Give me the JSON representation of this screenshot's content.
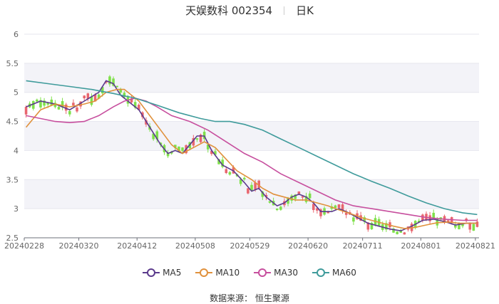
{
  "header": {
    "name": "天娱数科 002354",
    "period": "日K"
  },
  "source": "数据来源： 恒生聚源",
  "chart_data": {
    "type": "candlestick",
    "ylim": [
      2.5,
      6
    ],
    "y_ticks": [
      2.5,
      3,
      3.5,
      4,
      4.5,
      5,
      5.5,
      6
    ],
    "x_tick_labels": [
      "20240228",
      "20240320",
      "20240412",
      "20240508",
      "20240529",
      "20240620",
      "20240711",
      "20240801",
      "20240821"
    ],
    "x_tick_index": [
      0,
      15,
      31,
      47,
      62,
      78,
      93,
      109,
      124
    ],
    "n_days": 125,
    "up_color": "#e8666f",
    "down_color": "#7fe04a",
    "grid": true,
    "band_fill": "#f3f3f8",
    "legend_position": "bottom",
    "ma_series": [
      {
        "name": "MA5",
        "color": "#5b3a8c",
        "points": [
          [
            0,
            4.75
          ],
          [
            4,
            4.85
          ],
          [
            8,
            4.8
          ],
          [
            12,
            4.7
          ],
          [
            16,
            4.85
          ],
          [
            20,
            5.0
          ],
          [
            22,
            5.2
          ],
          [
            24,
            5.15
          ],
          [
            26,
            4.95
          ],
          [
            28,
            4.85
          ],
          [
            31,
            4.7
          ],
          [
            34,
            4.4
          ],
          [
            37,
            4.1
          ],
          [
            39,
            3.95
          ],
          [
            41,
            4.0
          ],
          [
            43,
            3.95
          ],
          [
            45,
            4.1
          ],
          [
            47,
            4.25
          ],
          [
            49,
            4.25
          ],
          [
            51,
            4.0
          ],
          [
            54,
            3.75
          ],
          [
            57,
            3.65
          ],
          [
            60,
            3.45
          ],
          [
            62,
            3.3
          ],
          [
            64,
            3.35
          ],
          [
            66,
            3.2
          ],
          [
            69,
            3.05
          ],
          [
            71,
            3.1
          ],
          [
            73,
            3.2
          ],
          [
            75,
            3.25
          ],
          [
            77,
            3.2
          ],
          [
            79,
            3.1
          ],
          [
            81,
            2.95
          ],
          [
            84,
            2.95
          ],
          [
            86,
            3.0
          ],
          [
            88,
            2.95
          ],
          [
            91,
            2.85
          ],
          [
            94,
            2.75
          ],
          [
            97,
            2.7
          ],
          [
            100,
            2.65
          ],
          [
            103,
            2.62
          ],
          [
            106,
            2.7
          ],
          [
            109,
            2.8
          ],
          [
            112,
            2.82
          ],
          [
            115,
            2.78
          ],
          [
            118,
            2.72
          ],
          [
            121,
            2.75
          ],
          [
            124,
            2.75
          ]
        ]
      },
      {
        "name": "MA10",
        "color": "#e0913c",
        "points": [
          [
            0,
            4.4
          ],
          [
            4,
            4.7
          ],
          [
            8,
            4.8
          ],
          [
            12,
            4.75
          ],
          [
            16,
            4.8
          ],
          [
            19,
            4.85
          ],
          [
            22,
            5.0
          ],
          [
            25,
            5.05
          ],
          [
            27,
            5.05
          ],
          [
            29,
            4.95
          ],
          [
            31,
            4.85
          ],
          [
            34,
            4.6
          ],
          [
            37,
            4.35
          ],
          [
            40,
            4.1
          ],
          [
            43,
            3.95
          ],
          [
            46,
            4.05
          ],
          [
            49,
            4.15
          ],
          [
            52,
            4.05
          ],
          [
            55,
            3.85
          ],
          [
            58,
            3.65
          ],
          [
            62,
            3.5
          ],
          [
            65,
            3.35
          ],
          [
            68,
            3.25
          ],
          [
            71,
            3.2
          ],
          [
            74,
            3.15
          ],
          [
            77,
            3.15
          ],
          [
            80,
            3.1
          ],
          [
            83,
            3.05
          ],
          [
            86,
            2.98
          ],
          [
            89,
            2.92
          ],
          [
            92,
            2.85
          ],
          [
            95,
            2.8
          ],
          [
            98,
            2.75
          ],
          [
            101,
            2.7
          ],
          [
            104,
            2.66
          ],
          [
            107,
            2.68
          ],
          [
            110,
            2.72
          ],
          [
            113,
            2.76
          ],
          [
            116,
            2.77
          ],
          [
            119,
            2.75
          ],
          [
            122,
            2.75
          ],
          [
            124,
            2.75
          ]
        ]
      },
      {
        "name": "MA30",
        "color": "#c74f9e",
        "points": [
          [
            0,
            4.6
          ],
          [
            4,
            4.55
          ],
          [
            8,
            4.5
          ],
          [
            12,
            4.48
          ],
          [
            16,
            4.5
          ],
          [
            20,
            4.6
          ],
          [
            24,
            4.75
          ],
          [
            27,
            4.85
          ],
          [
            30,
            4.9
          ],
          [
            33,
            4.85
          ],
          [
            36,
            4.75
          ],
          [
            40,
            4.6
          ],
          [
            45,
            4.5
          ],
          [
            50,
            4.35
          ],
          [
            55,
            4.15
          ],
          [
            60,
            3.95
          ],
          [
            65,
            3.8
          ],
          [
            70,
            3.6
          ],
          [
            75,
            3.45
          ],
          [
            80,
            3.3
          ],
          [
            85,
            3.15
          ],
          [
            90,
            3.05
          ],
          [
            95,
            3.0
          ],
          [
            100,
            2.95
          ],
          [
            105,
            2.9
          ],
          [
            110,
            2.85
          ],
          [
            115,
            2.82
          ],
          [
            120,
            2.8
          ],
          [
            124,
            2.8
          ]
        ]
      },
      {
        "name": "MA60",
        "color": "#3f9b9b",
        "points": [
          [
            0,
            5.2
          ],
          [
            6,
            5.15
          ],
          [
            12,
            5.1
          ],
          [
            18,
            5.05
          ],
          [
            24,
            4.98
          ],
          [
            30,
            4.9
          ],
          [
            36,
            4.78
          ],
          [
            42,
            4.65
          ],
          [
            48,
            4.55
          ],
          [
            52,
            4.5
          ],
          [
            56,
            4.5
          ],
          [
            60,
            4.45
          ],
          [
            65,
            4.35
          ],
          [
            70,
            4.2
          ],
          [
            75,
            4.05
          ],
          [
            80,
            3.9
          ],
          [
            85,
            3.75
          ],
          [
            90,
            3.6
          ],
          [
            95,
            3.47
          ],
          [
            100,
            3.35
          ],
          [
            105,
            3.22
          ],
          [
            110,
            3.1
          ],
          [
            115,
            3.0
          ],
          [
            120,
            2.93
          ],
          [
            124,
            2.9
          ]
        ]
      }
    ]
  }
}
